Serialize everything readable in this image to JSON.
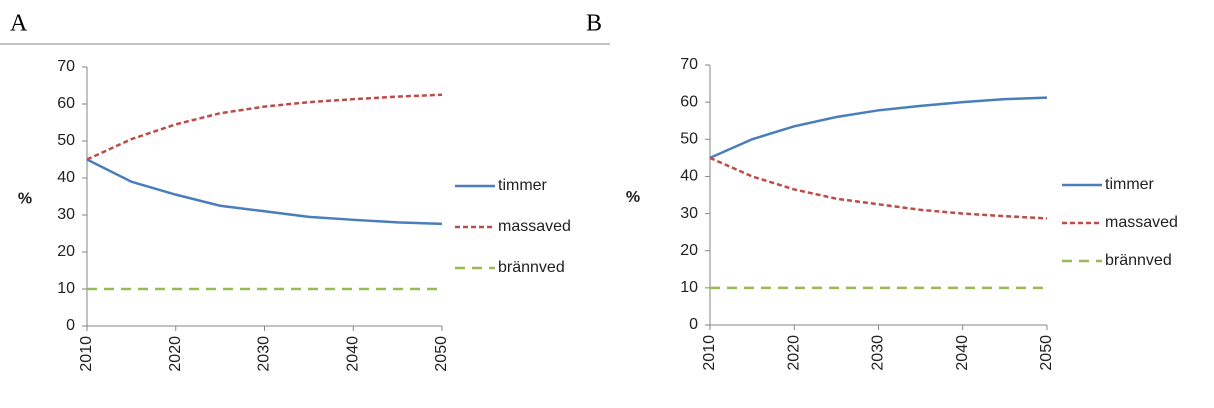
{
  "chart_data": [
    {
      "type": "line",
      "panel": "A",
      "ylabel": "%",
      "x": [
        2010,
        2015,
        2020,
        2025,
        2030,
        2035,
        2040,
        2045,
        2050
      ],
      "xlim": [
        2010,
        2050
      ],
      "xticks": [
        2010,
        2020,
        2030,
        2040,
        2050
      ],
      "ylim": [
        0,
        70
      ],
      "yticks": [
        0,
        10,
        20,
        30,
        40,
        50,
        60,
        70
      ],
      "legend": "right",
      "series": [
        {
          "name": "timmer",
          "color": "#4a7ebb",
          "linestyle": "solid",
          "values": [
            45,
            39,
            35.5,
            32.5,
            31,
            29.5,
            28.7,
            28,
            27.6
          ]
        },
        {
          "name": "massaved",
          "color": "#be4b48",
          "linestyle": "dotted",
          "values": [
            45,
            50.5,
            54.5,
            57.5,
            59.3,
            60.5,
            61.3,
            62,
            62.5
          ]
        },
        {
          "name": "brännved",
          "color": "#98b954",
          "linestyle": "dashed",
          "values": [
            10,
            10,
            10,
            10,
            10,
            10,
            10,
            10,
            10
          ]
        }
      ]
    },
    {
      "type": "line",
      "panel": "B",
      "ylabel": "%",
      "x": [
        2010,
        2015,
        2020,
        2025,
        2030,
        2035,
        2040,
        2045,
        2050
      ],
      "xlim": [
        2010,
        2050
      ],
      "xticks": [
        2010,
        2020,
        2030,
        2040,
        2050
      ],
      "ylim": [
        0,
        70
      ],
      "yticks": [
        0,
        10,
        20,
        30,
        40,
        50,
        60,
        70
      ],
      "legend": "right",
      "series": [
        {
          "name": "timmer",
          "color": "#4a7ebb",
          "linestyle": "solid",
          "values": [
            45,
            50,
            53.5,
            56,
            57.8,
            59,
            60,
            60.8,
            61.2
          ]
        },
        {
          "name": "massaved",
          "color": "#be4b48",
          "linestyle": "dotted",
          "values": [
            45,
            40,
            36.5,
            34,
            32.5,
            31,
            30,
            29.3,
            28.7
          ]
        },
        {
          "name": "brännved",
          "color": "#98b954",
          "linestyle": "dashed",
          "values": [
            10,
            10,
            10,
            10,
            10,
            10,
            10,
            10,
            10
          ]
        }
      ]
    }
  ]
}
